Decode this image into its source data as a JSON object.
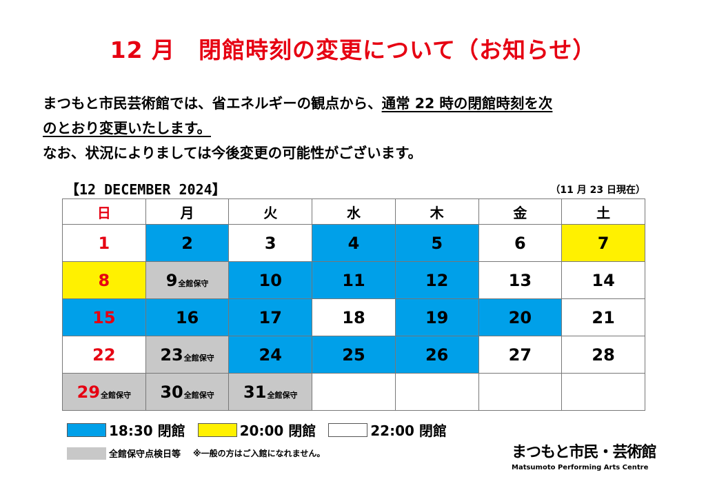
{
  "title": "12 月　閉館時刻の変更について（お知らせ）",
  "body": {
    "line1_a": "まつもと市民芸術館では、省エネルギーの観点から、",
    "line1_b": "通常 22 時の閉館時刻を次",
    "line2": "のとおり変更いたします。",
    "line3": "なお、状況によりましては今後変更の可能性がございます。"
  },
  "calendar": {
    "label": "【12 DECEMBER  2024】",
    "note": "（11 月 23 日現在）",
    "weekdays": [
      "日",
      "月",
      "火",
      "水",
      "木",
      "金",
      "土"
    ],
    "maintenance_suffix": "全館保守",
    "weeks": [
      [
        {
          "day": "1",
          "status": "22:00"
        },
        {
          "day": "2",
          "status": "18:30"
        },
        {
          "day": "3",
          "status": "22:00"
        },
        {
          "day": "4",
          "status": "18:30"
        },
        {
          "day": "5",
          "status": "18:30"
        },
        {
          "day": "6",
          "status": "22:00"
        },
        {
          "day": "7",
          "status": "20:00"
        }
      ],
      [
        {
          "day": "8",
          "status": "20:00"
        },
        {
          "day": "9",
          "status": "maintenance"
        },
        {
          "day": "10",
          "status": "18:30"
        },
        {
          "day": "11",
          "status": "18:30"
        },
        {
          "day": "12",
          "status": "18:30"
        },
        {
          "day": "13",
          "status": "22:00"
        },
        {
          "day": "14",
          "status": "22:00"
        }
      ],
      [
        {
          "day": "15",
          "status": "18:30"
        },
        {
          "day": "16",
          "status": "18:30"
        },
        {
          "day": "17",
          "status": "18:30"
        },
        {
          "day": "18",
          "status": "22:00"
        },
        {
          "day": "19",
          "status": "18:30"
        },
        {
          "day": "20",
          "status": "18:30"
        },
        {
          "day": "21",
          "status": "22:00"
        }
      ],
      [
        {
          "day": "22",
          "status": "22:00"
        },
        {
          "day": "23",
          "status": "maintenance"
        },
        {
          "day": "24",
          "status": "18:30"
        },
        {
          "day": "25",
          "status": "18:30"
        },
        {
          "day": "26",
          "status": "18:30"
        },
        {
          "day": "27",
          "status": "22:00"
        },
        {
          "day": "28",
          "status": "22:00"
        }
      ],
      [
        {
          "day": "29",
          "status": "maintenance"
        },
        {
          "day": "30",
          "status": "maintenance"
        },
        {
          "day": "31",
          "status": "maintenance"
        },
        {
          "day": "",
          "status": "empty"
        },
        {
          "day": "",
          "status": "empty"
        },
        {
          "day": "",
          "status": "empty"
        },
        {
          "day": "",
          "status": "empty"
        }
      ]
    ]
  },
  "legend": {
    "blue": "18:30 閉館",
    "yellow": "20:00 閉館",
    "white": "22:00 閉館",
    "gray": "全館保守点検日等",
    "note": "※一般の方はご入館になれません。"
  },
  "organization": {
    "name_jp": "まつもと市民・芸術館",
    "name_en": "Matsumoto Performing Arts Centre"
  },
  "colors": {
    "title": "#e60012",
    "sunday": "#e60012",
    "blue": "#00a0e9",
    "yellow": "#fff100",
    "gray": "#c8c8c8"
  }
}
